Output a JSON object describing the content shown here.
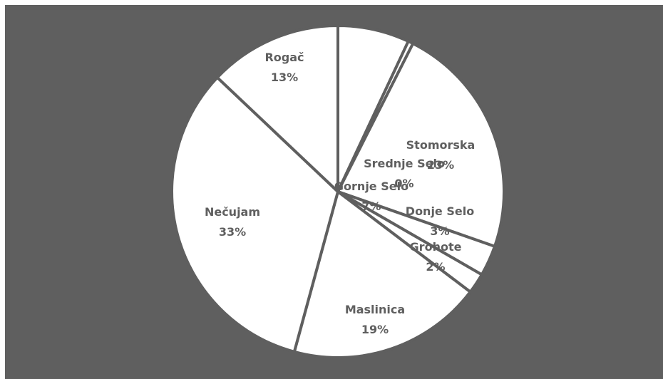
{
  "colors": {
    "background": "#5f5f5f",
    "slice_fill": "#ffffff",
    "slice_stroke": "#5f5f5f",
    "label": "#5f5f5f"
  },
  "chart_data": {
    "type": "pie",
    "title": "",
    "start_angle_deg": 0,
    "direction": "clockwise",
    "slices": [
      {
        "name": "Gornje Selo",
        "value": 7,
        "label": "7%"
      },
      {
        "name": "Srednje Selo",
        "value": 0.5,
        "label": "0%"
      },
      {
        "name": "Stomorska",
        "value": 23,
        "label": "23%"
      },
      {
        "name": "Donje Selo",
        "value": 3,
        "label": "3%"
      },
      {
        "name": "Grohote",
        "value": 2,
        "label": "2%"
      },
      {
        "name": "Maslinica",
        "value": 19,
        "label": "19%"
      },
      {
        "name": "Nečujam",
        "value": 33,
        "label": "33%"
      },
      {
        "name": "Rogač",
        "value": 13,
        "label": "13%"
      }
    ]
  }
}
